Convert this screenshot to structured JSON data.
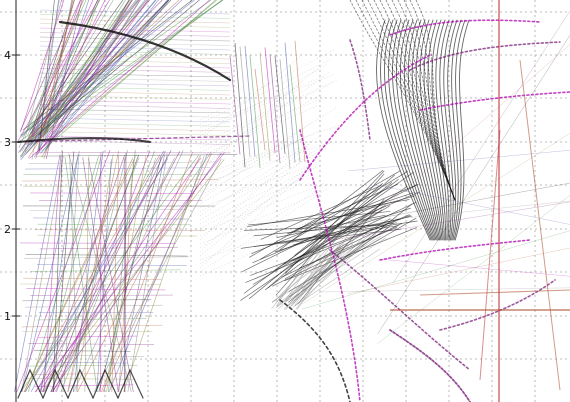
{
  "chart_data": {
    "type": "line",
    "title": "",
    "xlabel": "",
    "ylabel": "",
    "grid": true,
    "y_ticks": [
      "1",
      "2",
      "3",
      "4"
    ],
    "ylim": [
      0,
      4.6
    ],
    "colors": {
      "background": "#ffffff",
      "grid": "#8a8a8a",
      "dark": "#111111",
      "purple": "#7a1f7a",
      "magenta": "#b000b0",
      "gray": "#7a7a7a",
      "lightgray": "#b8b8b8",
      "brown": "#b35a3a",
      "blue": "#3f4fa8",
      "green": "#3c8d3c",
      "red": "#c03030",
      "olive": "#8a8a3a"
    }
  }
}
